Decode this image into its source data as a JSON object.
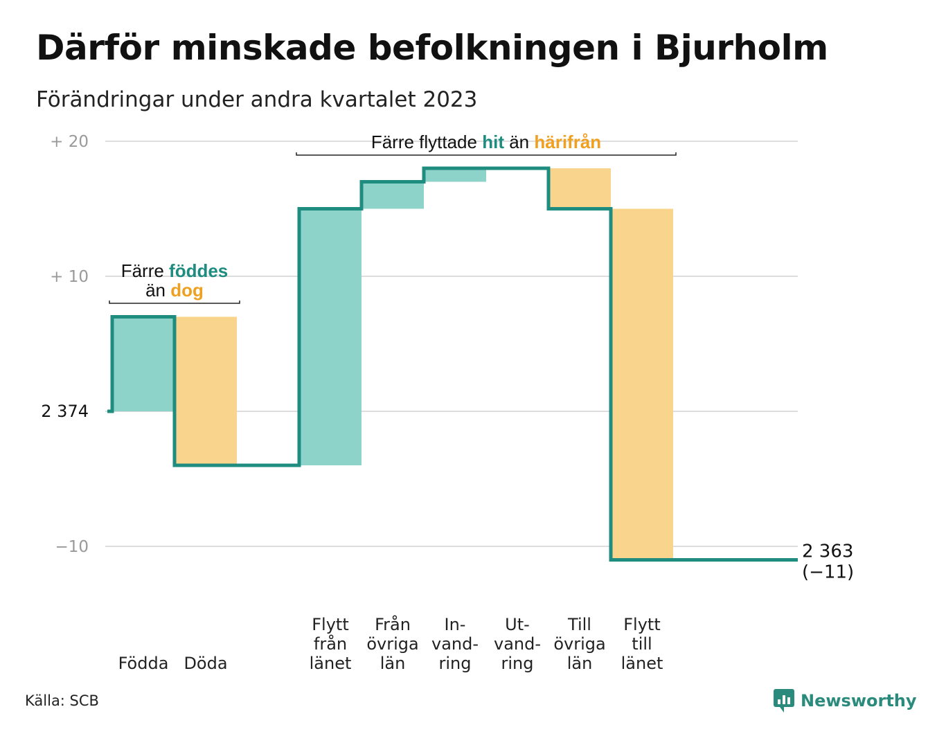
{
  "title": "Därför minskade befolkningen i Bjurholm",
  "subtitle": "Förändringar under andra kvartalet 2023",
  "source": "Källa: SCB",
  "brand": "Newsworthy",
  "colors": {
    "increase": "#8dd3ca",
    "decrease": "#f9d48c",
    "line": "#1f8c80",
    "teal_text": "#1f8c80",
    "orange_text": "#f0a020",
    "grid": "#dddddd",
    "tick": "#999999"
  },
  "chart_data": {
    "type": "waterfall",
    "start_value": 2374,
    "start_label": "2  374",
    "end_label": "2 363",
    "end_change_label": "(−11)",
    "ylim": [
      -12,
      21
    ],
    "yticks": [
      {
        "value": 20,
        "label": "+  20"
      },
      {
        "value": 10,
        "label": "+  10"
      },
      {
        "value": -10,
        "label": "−10"
      }
    ],
    "steps": [
      {
        "category": "Födda",
        "label_lines": [
          "Födda"
        ],
        "change": 7,
        "kind": "increase",
        "slot": 0
      },
      {
        "category": "Döda",
        "label_lines": [
          "Döda"
        ],
        "change": -11,
        "kind": "decrease",
        "slot": 1
      },
      {
        "category": "Flytt från länet",
        "label_lines": [
          "Flytt",
          "från",
          "länet"
        ],
        "change": 19,
        "kind": "increase",
        "slot": 3
      },
      {
        "category": "Från övriga län",
        "label_lines": [
          "Från",
          "övriga",
          "län"
        ],
        "change": 2,
        "kind": "increase",
        "slot": 4
      },
      {
        "category": "Invandring",
        "label_lines": [
          "In-",
          "vand-",
          "ring"
        ],
        "change": 1,
        "kind": "increase",
        "slot": 5
      },
      {
        "category": "Utvandring",
        "label_lines": [
          "Ut-",
          "vand-",
          "ring"
        ],
        "change": 0,
        "kind": "decrease",
        "slot": 6
      },
      {
        "category": "Till övriga län",
        "label_lines": [
          "Till",
          "övriga",
          "län"
        ],
        "change": -3,
        "kind": "decrease",
        "slot": 7
      },
      {
        "category": "Flytt till länet",
        "label_lines": [
          "Flytt",
          "till",
          "länet"
        ],
        "change": -26,
        "kind": "decrease",
        "slot": 8
      }
    ],
    "annotations": [
      {
        "lines": [
          [
            {
              "text": "Färre ",
              "tone": "plain"
            },
            {
              "text": "föddes",
              "tone": "teal"
            }
          ],
          [
            {
              "text": "än ",
              "tone": "plain"
            },
            {
              "text": "dog",
              "tone": "orange"
            }
          ]
        ],
        "from_slot": 0,
        "to_slot": 1
      },
      {
        "lines": [
          [
            {
              "text": "Färre flyttade ",
              "tone": "plain"
            },
            {
              "text": "hit",
              "tone": "teal"
            },
            {
              "text": "  än ",
              "tone": "plain"
            },
            {
              "text": "härifrån",
              "tone": "orange"
            }
          ]
        ],
        "from_slot": 3,
        "to_slot": 8
      }
    ]
  }
}
